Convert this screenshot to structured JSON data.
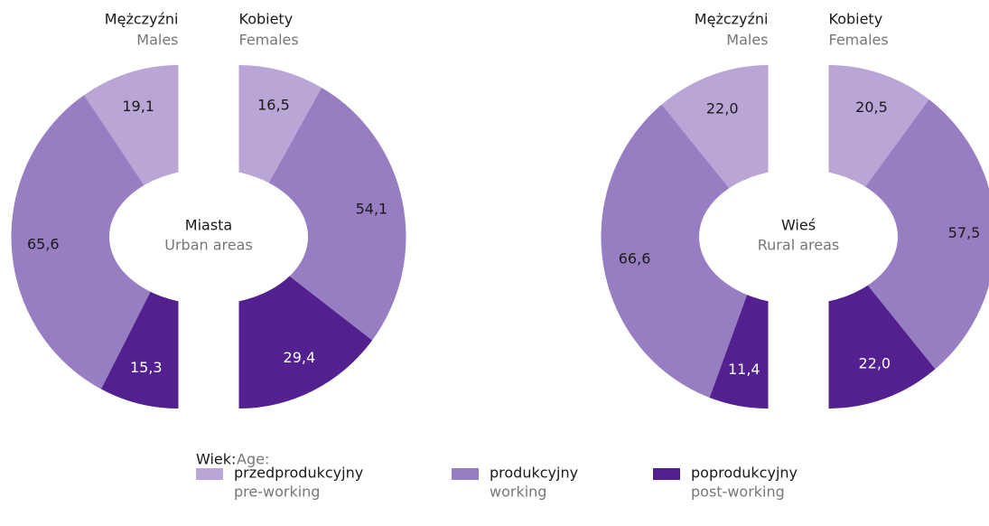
{
  "chart_data": [
    {
      "type": "split-donut",
      "title": "Miasta",
      "subtitle": "Urban areas",
      "series": [
        {
          "name": "Mężczyźni",
          "name_en": "Males",
          "values": [
            19.1,
            65.6,
            15.3
          ],
          "value_labels": [
            "19,1",
            "65,6",
            "15,3"
          ]
        },
        {
          "name": "Kobiety",
          "name_en": "Females",
          "values": [
            16.5,
            54.1,
            29.4
          ],
          "value_labels": [
            "16,5",
            "54,1",
            "29,4"
          ]
        }
      ]
    },
    {
      "type": "split-donut",
      "title": "Wieś",
      "subtitle": "Rural areas",
      "series": [
        {
          "name": "Mężczyźni",
          "name_en": "Males",
          "values": [
            22.0,
            66.6,
            11.4
          ],
          "value_labels": [
            "22,0",
            "66,6",
            "11,4"
          ]
        },
        {
          "name": "Kobiety",
          "name_en": "Females",
          "values": [
            20.5,
            57.5,
            22.0
          ],
          "value_labels": [
            "20,5",
            "57,5",
            "22,0"
          ]
        }
      ]
    }
  ],
  "legend": {
    "title": "Wiek:",
    "title_en": "Age:",
    "categories": [
      "przedprodukcyjny",
      "produkcyjny",
      "poprodukcyjny"
    ],
    "categories_en": [
      "pre-working",
      "working",
      "post-working"
    ],
    "colors": [
      "#b9a6d6",
      "#977dc2",
      "#52218f"
    ]
  }
}
